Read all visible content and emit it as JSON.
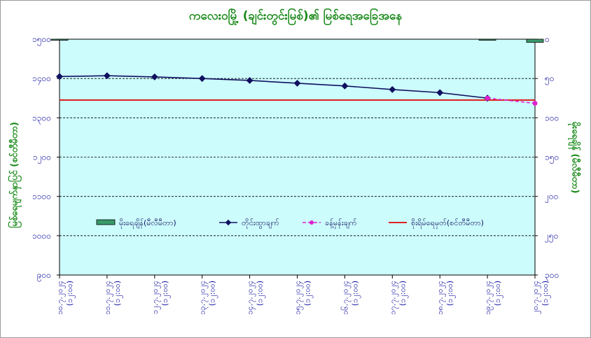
{
  "chart_data": {
    "type": "line",
    "title": "ကလေးဝမြို့ (ချင်းတွင်းမြစ်)၏ မြစ်ရေအခြေအနေ",
    "ylabel_left": "မြစ်ရေမျက်နှာပြင် (စင်တီမီတာ)",
    "ylabel_right": "မိုးရေချိန် (မီလီမီတာ)",
    "categories": [
      "၁၀.၇.၂၀၂၄\n(၁၂:၀၀)",
      "၁၁.၇.၂၀၂၄\n(၁၂:၀၀)",
      "၁၂.၇.၂၀၂၄\n(၁၂:၀၀)",
      "၁၃.၇.၂၀၂၄\n(၁၂:၀၀)",
      "၁၄.၇.၂၀၂၄\n(၁၂:၀၀)",
      "၁၅.၇.၂၀၂၄\n(၁၂:၀၀)",
      "၁၆.၇.၂၀၂၄\n(၁၂:၀၀)",
      "၁၇.၇.၂၀၂၄\n(၁၂:၀၀)",
      "၁၈.၇.၂၀၂၄\n(၁၂:၀၀)",
      "၁၉.၇.၂၀၂၄\n(၁၂:၀၀)",
      "၂၀.၇.၂၀၂၄\n(၁၂:၀၀)"
    ],
    "ylim_left": [
      900,
      1500
    ],
    "yticks_left": [
      "၉၀၀",
      "၁၀၀၀",
      "၁၁၀၀",
      "၁၂၀၀",
      "၁၃၀၀",
      "၁၄၀၀",
      "၁၅၀၀"
    ],
    "ylim_right": [
      0,
      600
    ],
    "yticks_right": [
      "၀",
      "၅၀",
      "၁၀၀",
      "၁၅၀",
      "၂၀၀",
      "၂၅၀",
      "၃၀၀"
    ],
    "series": [
      {
        "name": "မိုးရေချိန်(မီလီမီတာ)",
        "kind": "bar",
        "axis": "right",
        "color": "#3a9a6a",
        "values": [
          2,
          null,
          null,
          null,
          null,
          null,
          null,
          null,
          null,
          1,
          8
        ]
      },
      {
        "name": "တိုင်းထွာချက်",
        "kind": "line",
        "axis": "left",
        "color": "#101060",
        "values": [
          1405,
          1407,
          1404,
          1400,
          1395,
          1388,
          1381,
          1372,
          1364,
          1350,
          null
        ]
      },
      {
        "name": "ခန့်မှန်းချက်",
        "kind": "line-dashed",
        "axis": "left",
        "color": "#e020d0",
        "values": [
          null,
          null,
          null,
          null,
          null,
          null,
          null,
          null,
          null,
          1350,
          1337
        ]
      },
      {
        "name": "စိုးရိမ်ရေမှတ်(စင်တီမီတာ)",
        "kind": "hline",
        "axis": "left",
        "color": "#e02020",
        "value": 1345
      }
    ],
    "plot_background": "#ccfcfc",
    "grid": "horizontal dashed",
    "legend_position": "inside-bottom"
  }
}
